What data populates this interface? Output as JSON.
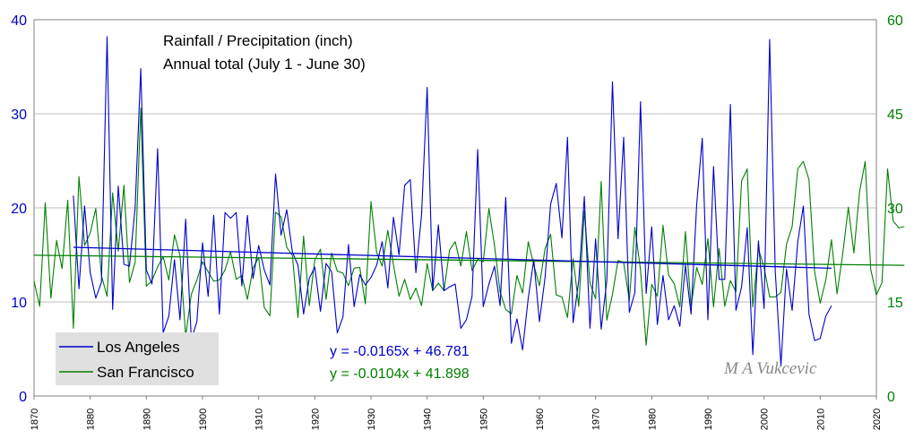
{
  "chart_data": {
    "type": "line",
    "title": "Rainfall / Precipitation (inch)",
    "subtitle": "Annual total (July 1 - June 30)",
    "x_ticks": [
      1870,
      1880,
      1890,
      1900,
      1910,
      1920,
      1930,
      1940,
      1950,
      1960,
      1970,
      1980,
      1990,
      2000,
      2010,
      2020
    ],
    "xlim": [
      1870,
      2020
    ],
    "y_left": {
      "range": [
        0,
        40
      ],
      "ticks": [
        0,
        10,
        20,
        30,
        40
      ],
      "color": "#0000cc"
    },
    "y_right": {
      "range": [
        0,
        60
      ],
      "ticks": [
        0,
        15,
        30,
        45,
        60
      ],
      "color": "#008000"
    },
    "grid": "horizontal",
    "legend_position": "bottom-left",
    "legend_bg": "#e0e0e0",
    "series": [
      {
        "name": "Los Angeles",
        "axis": "left",
        "color": "#0000cc",
        "x_start": 1877,
        "values": [
          21.3,
          11.4,
          20.2,
          13.1,
          10.4,
          12.1,
          38.2,
          9.2,
          22.3,
          14.0,
          13.8,
          20.0,
          34.8,
          13.4,
          11.9,
          26.3,
          6.7,
          8.5,
          14.5,
          8.1,
          18.8,
          6.0,
          7.9,
          16.3,
          10.6,
          19.2,
          8.7,
          19.5,
          18.9,
          19.5,
          11.7,
          19.2,
          12.5,
          16.0,
          13.4,
          11.8,
          23.6,
          17.1,
          19.8,
          15.3,
          13.9,
          8.7,
          12.5,
          13.7,
          9.0,
          14.1,
          13.2,
          6.7,
          8.4,
          16.1,
          9.5,
          12.9,
          11.8,
          12.6,
          13.9,
          16.4,
          11.5,
          19.0,
          15.0,
          22.4,
          23.0,
          13.1,
          19.2,
          32.8,
          11.2,
          18.2,
          11.2,
          11.6,
          11.9,
          7.2,
          8.1,
          10.6,
          26.2,
          9.5,
          11.9,
          13.8,
          9.6,
          21.1,
          5.6,
          8.2,
          4.9,
          10.4,
          14.5,
          7.9,
          12.6,
          20.4,
          22.6,
          16.8,
          27.5,
          7.8,
          12.3,
          21.2,
          7.2,
          16.7,
          7.1,
          12.3,
          33.4,
          16.7,
          27.5,
          8.9,
          11.0,
          31.3,
          10.9,
          18.0,
          7.6,
          12.8,
          8.1,
          9.6,
          7.4,
          13.9,
          8.7,
          20.4,
          27.4,
          8.1,
          24.4,
          12.4,
          12.4,
          31.0,
          9.1,
          11.6,
          17.9,
          4.4,
          16.5,
          9.3,
          37.9,
          13.2,
          3.2,
          13.5,
          9.1,
          16.4,
          20.2,
          8.7,
          5.9,
          6.1,
          8.5,
          9.6
        ],
        "trend": {
          "slope": -0.0165,
          "intercept": 46.781,
          "equation": "y = -0.0165x + 46.781"
        }
      },
      {
        "name": "San Francisco",
        "axis": "right",
        "color": "#008000",
        "x_start": 1870,
        "values": [
          18.3,
          14.3,
          30.8,
          15.6,
          24.8,
          20.3,
          31.2,
          10.8,
          35.0,
          24.0,
          26.0,
          29.9,
          19.2,
          15.9,
          32.4,
          23.1,
          33.6,
          18.1,
          21.3,
          45.9,
          17.5,
          18.4,
          20.6,
          22.2,
          18.5,
          25.7,
          22.4,
          9.5,
          16.2,
          18.5,
          21.4,
          19.8,
          18.3,
          18.5,
          20.1,
          23.0,
          18.6,
          19.2,
          15.4,
          20.4,
          22.1,
          14.1,
          12.8,
          29.3,
          28.6,
          23.7,
          22.4,
          12.5,
          25.5,
          14.4,
          21.7,
          23.4,
          15.4,
          22.8,
          19.9,
          19.6,
          17.6,
          20.4,
          20.5,
          14.7,
          31.0,
          22.9,
          20.7,
          26.4,
          20.9,
          15.9,
          18.6,
          15.4,
          17.2,
          14.4,
          21.1,
          16.8,
          18.0,
          16.8,
          23.3,
          24.6,
          20.7,
          26.2,
          20.0,
          21.8,
          21.4,
          29.9,
          23.9,
          16.6,
          13.8,
          13.1,
          19.2,
          16.4,
          24.6,
          20.9,
          17.6,
          23.5,
          25.8,
          16.1,
          15.8,
          12.5,
          21.9,
          14.3,
          29.5,
          18.0,
          15.5,
          34.2,
          12.1,
          16.2,
          21.6,
          21.3,
          15.2,
          26.9,
          20.1,
          8.1,
          17.8,
          15.9,
          27.2,
          19.3,
          17.9,
          14.2,
          26.2,
          14.3,
          20.5,
          17.8,
          25.1,
          14.2,
          23.5,
          14.3,
          18.4,
          16.6,
          34.3,
          36.2,
          14.2,
          23.5,
          20.5,
          15.8,
          15.8,
          16.5,
          24.2,
          27.0,
          36.2,
          37.4,
          34.5,
          19.8,
          14.8,
          18.5,
          24.9,
          16.3,
          22.6,
          30.1,
          22.8,
          32.5,
          37.4,
          20.2,
          16.1,
          18.1,
          36.2,
          27.9,
          26.8,
          27.0
        ],
        "trend": {
          "slope": -0.0104,
          "intercept": 41.898,
          "equation": "y = -0.0104x + 41.898"
        }
      }
    ]
  },
  "watermark": "M A Vukcevic"
}
